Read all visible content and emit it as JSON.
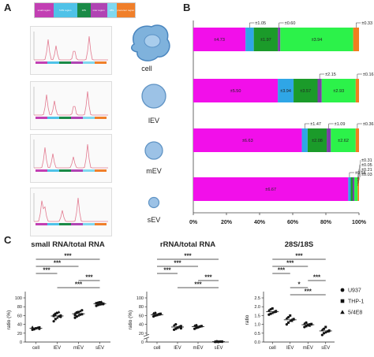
{
  "panels": {
    "a": "A",
    "b": "B",
    "c": "C"
  },
  "legend_regions": [
    {
      "label": "small region",
      "color": "#c23fb3"
    },
    {
      "label": "5.8S region",
      "color": "#4fc2e8"
    },
    {
      "label": "18S",
      "color": "#1a8a47"
    },
    {
      "label": "inter region",
      "color": "#b044b3"
    },
    {
      "label": "28S",
      "color": "#7fd8f0"
    },
    {
      "label": "precursor region",
      "color": "#f07f2a"
    }
  ],
  "sample_labels": [
    "cell",
    "lEV",
    "mEV",
    "sEV"
  ],
  "colors": {
    "small": "#f20fea",
    "fiveS": "#2fa6e6",
    "s18": "#1b9b2a",
    "inter": "#7a3fa5",
    "s28": "#2cf24a",
    "pre": "#f07e1f"
  },
  "chart_data": [
    {
      "type": "bar",
      "orientation": "horizontal",
      "stacked": true,
      "categories": [
        "cell",
        "lEV",
        "mEV",
        "sEV"
      ],
      "xlim": [
        0,
        100
      ],
      "xticks": [
        "0%",
        "20%",
        "40%",
        "60%",
        "80%",
        "100%"
      ],
      "segments": [
        [
          31.5,
          5.0,
          14.5,
          1.5,
          44.0,
          3.5
        ],
        [
          51.0,
          9.5,
          14.5,
          2.5,
          20.5,
          2.0
        ],
        [
          65.5,
          3.5,
          11.5,
          2.5,
          15.0,
          2.0
        ],
        [
          93.5,
          1.5,
          1.2,
          1.0,
          2.0,
          0.8
        ]
      ],
      "annotations": [
        {
          "text": "±4.73",
          "row": 0,
          "seg": 0
        },
        {
          "text": "±1.05",
          "row": 0,
          "seg": 1,
          "above": true
        },
        {
          "text": "±1.97",
          "row": 0,
          "seg": 2
        },
        {
          "text": "±0.60",
          "row": 0,
          "seg": 3,
          "above": true
        },
        {
          "text": "±3.94",
          "row": 0,
          "seg": 4
        },
        {
          "text": "±0.33",
          "row": 0,
          "seg": 5,
          "above": true
        },
        {
          "text": "±5.50",
          "row": 1,
          "seg": 0
        },
        {
          "text": "±3.94",
          "row": 1,
          "seg": 1
        },
        {
          "text": "±3.57",
          "row": 1,
          "seg": 2
        },
        {
          "text": "±2.15",
          "row": 1,
          "seg": 3,
          "above": true
        },
        {
          "text": "±2.93",
          "row": 1,
          "seg": 4
        },
        {
          "text": "±0.16",
          "row": 1,
          "seg": 5,
          "above": true
        },
        {
          "text": "±6.63",
          "row": 2,
          "seg": 0
        },
        {
          "text": "±1.47",
          "row": 2,
          "seg": 1,
          "above": true
        },
        {
          "text": "±2.08",
          "row": 2,
          "seg": 2
        },
        {
          "text": "±1.09",
          "row": 2,
          "seg": 3,
          "above": true
        },
        {
          "text": "±2.62",
          "row": 2,
          "seg": 4
        },
        {
          "text": "±0.36",
          "row": 2,
          "seg": 5,
          "above": true
        },
        {
          "text": "±6.67",
          "row": 3,
          "seg": 0
        },
        {
          "text": "±0.56",
          "row": 3,
          "seg": 1,
          "above": true
        }
      ],
      "extra_labels": [
        "±0.31",
        "±0.05",
        "±0.21",
        "±0.03"
      ]
    },
    {
      "type": "scatter",
      "title": "small RNA/total RNA",
      "ylabel": "ratio (%)",
      "categories": [
        "cell",
        "lEV",
        "mEV",
        "sEV"
      ],
      "ylim": [
        0,
        100
      ],
      "yticks": [
        0,
        20,
        40,
        60,
        80,
        100
      ],
      "yticklabels": [
        "0",
        "20",
        "40",
        "60",
        "80",
        "100"
      ],
      "points": {
        "cell": [
          28,
          30,
          31,
          32,
          33,
          34,
          29,
          31,
          32,
          30
        ],
        "lEV": [
          47,
          52,
          55,
          58,
          60,
          62,
          64,
          66,
          68,
          57,
          59,
          61
        ],
        "mEV": [
          55,
          58,
          60,
          62,
          63,
          65,
          67,
          68,
          70,
          72,
          61
        ],
        "sEV": [
          82,
          84,
          85,
          86,
          87,
          88,
          89,
          90,
          91,
          86,
          88
        ]
      },
      "means": [
        31,
        59,
        64,
        87
      ],
      "sig": [
        {
          "from": 0,
          "to": 3,
          "label": "***"
        },
        {
          "from": 0,
          "to": 2,
          "label": "***"
        },
        {
          "from": 0,
          "to": 1,
          "label": "***"
        },
        {
          "from": 2,
          "to": 3,
          "label": "***"
        },
        {
          "from": 1,
          "to": 3,
          "label": "***"
        }
      ]
    },
    {
      "type": "scatter",
      "title": "rRNA/total RNA",
      "ylabel": "ratio (%)",
      "categories": [
        "cell",
        "lEV",
        "mEV",
        "sEV"
      ],
      "ylim": [
        0,
        100
      ],
      "broken_axis": true,
      "yticks": [
        0,
        20,
        40,
        60,
        80,
        100
      ],
      "yticklabels": [
        "0",
        "20",
        "40",
        "60",
        "80",
        "100"
      ],
      "points": {
        "cell": [
          58,
          60,
          62,
          63,
          64,
          65,
          66,
          61,
          62,
          63
        ],
        "lEV": [
          28,
          30,
          32,
          34,
          36,
          38,
          40,
          33,
          35,
          31
        ],
        "mEV": [
          30,
          32,
          33,
          35,
          36,
          37,
          38,
          34,
          35,
          36
        ],
        "sEV": [
          0.3,
          0.5,
          0.7,
          0.9,
          1.1,
          1.3,
          1.5,
          0.8,
          1.0,
          0.6
        ]
      },
      "means": [
        62,
        34,
        35,
        0.9
      ],
      "sig": [
        {
          "from": 0,
          "to": 3,
          "label": "***"
        },
        {
          "from": 0,
          "to": 2,
          "label": "***"
        },
        {
          "from": 0,
          "to": 1,
          "label": "***"
        },
        {
          "from": 2,
          "to": 3,
          "label": "***"
        },
        {
          "from": 1,
          "to": 3,
          "label": "***"
        }
      ]
    },
    {
      "type": "scatter",
      "title": "28S/18S",
      "ylabel": "ratio",
      "categories": [
        "cell",
        "lEV",
        "mEV",
        "sEV"
      ],
      "ylim": [
        0,
        2.5
      ],
      "yticks": [
        0,
        0.5,
        1.0,
        1.5,
        2.0,
        2.5
      ],
      "yticklabels": [
        "0.0",
        "0.5",
        "1.0",
        "1.5",
        "2.0",
        "2.5"
      ],
      "points": {
        "cell": [
          1.55,
          1.6,
          1.65,
          1.7,
          1.75,
          1.8,
          1.85,
          1.9,
          1.7,
          1.72
        ],
        "lEV": [
          1.0,
          1.1,
          1.2,
          1.25,
          1.3,
          1.35,
          1.4,
          1.5,
          1.2,
          1.28
        ],
        "mEV": [
          0.85,
          0.9,
          0.95,
          1.0,
          1.02,
          1.05,
          1.1,
          0.98,
          0.93,
          1.0
        ],
        "sEV": [
          0.4,
          0.5,
          0.55,
          0.6,
          0.65,
          0.7,
          0.75,
          0.85,
          0.6,
          0.62
        ]
      },
      "means": [
        1.72,
        1.26,
        0.98,
        0.63
      ],
      "sig": [
        {
          "from": 0,
          "to": 3,
          "label": "***"
        },
        {
          "from": 0,
          "to": 2,
          "label": "***"
        },
        {
          "from": 0,
          "to": 1,
          "label": "***"
        },
        {
          "from": 2,
          "to": 3,
          "label": "***"
        },
        {
          "from": 1,
          "to": 2,
          "label": "*"
        },
        {
          "from": 1,
          "to": 3,
          "label": "***"
        }
      ]
    }
  ],
  "scatter_legend": [
    {
      "marker": "circle",
      "label": "U937"
    },
    {
      "marker": "square",
      "label": "THP-1"
    },
    {
      "marker": "triangle",
      "label": "5/4E8"
    }
  ]
}
